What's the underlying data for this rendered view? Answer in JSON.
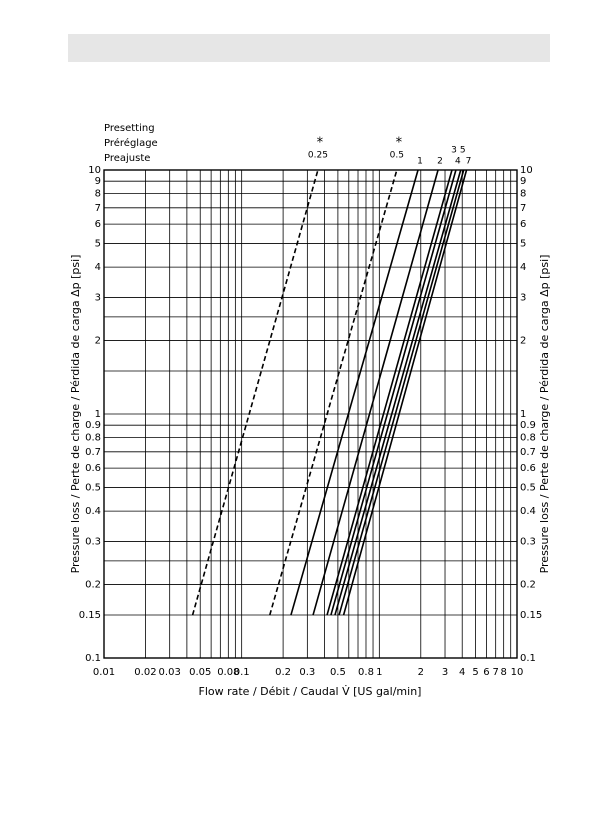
{
  "chart_data": {
    "type": "line",
    "xlabel": "Flow rate / Débit / Caudal V̇ [US gal/min]",
    "ylabel": "Pressure loss / Perte de charge / Pérdida de carga Δp [psi]",
    "legend_title": [
      "Presetting",
      "Préréglage",
      "Preajuste"
    ],
    "log_x": true,
    "log_y": true,
    "grid": true,
    "xlim": [
      0.01,
      10
    ],
    "ylim": [
      0.1,
      10
    ],
    "xticks": [
      0.01,
      0.02,
      0.03,
      0.05,
      0.08,
      0.1,
      0.2,
      0.3,
      0.5,
      0.8,
      1,
      2,
      3,
      4,
      5,
      6,
      7,
      8,
      10
    ],
    "xminor": [
      0.04,
      0.06,
      0.07,
      0.09,
      0.4,
      0.6,
      0.7,
      0.9,
      9
    ],
    "yticks": [
      0.1,
      0.15,
      0.2,
      0.3,
      0.4,
      0.5,
      0.6,
      0.7,
      0.8,
      0.9,
      1,
      2,
      3,
      4,
      5,
      6,
      7,
      8,
      9,
      10
    ],
    "yminor": [
      0.25,
      1.5,
      2.5
    ],
    "series": [
      {
        "name": "0.25",
        "note": "*",
        "dashed": true,
        "color": "#000000",
        "x": [
          0.044,
          0.358
        ],
        "values": [
          0.15,
          10
        ]
      },
      {
        "name": "0.5",
        "note": "*",
        "dashed": true,
        "color": "#000000",
        "x": [
          0.16,
          1.34
        ],
        "values": [
          0.15,
          10
        ]
      },
      {
        "name": "1",
        "color": "#000000",
        "x": [
          0.228,
          1.91
        ],
        "values": [
          0.15,
          10
        ]
      },
      {
        "name": "2",
        "color": "#000000",
        "x": [
          0.33,
          2.67
        ],
        "values": [
          0.15,
          10
        ]
      },
      {
        "name": "3",
        "color": "#000000",
        "x": [
          0.417,
          3.37
        ],
        "values": [
          0.15,
          10
        ]
      },
      {
        "name": "4",
        "color": "#000000",
        "x": [
          0.445,
          3.6
        ],
        "values": [
          0.15,
          10
        ]
      },
      {
        "name": "5",
        "color": "#000000",
        "x": [
          0.476,
          3.9
        ],
        "values": [
          0.15,
          10
        ]
      },
      {
        "color": "#000000",
        "x": [
          0.51,
          4.1
        ],
        "values": [
          0.15,
          10
        ]
      },
      {
        "name": "7",
        "color": "#000000",
        "x": [
          0.55,
          4.3
        ],
        "values": [
          0.15,
          10
        ]
      }
    ]
  }
}
